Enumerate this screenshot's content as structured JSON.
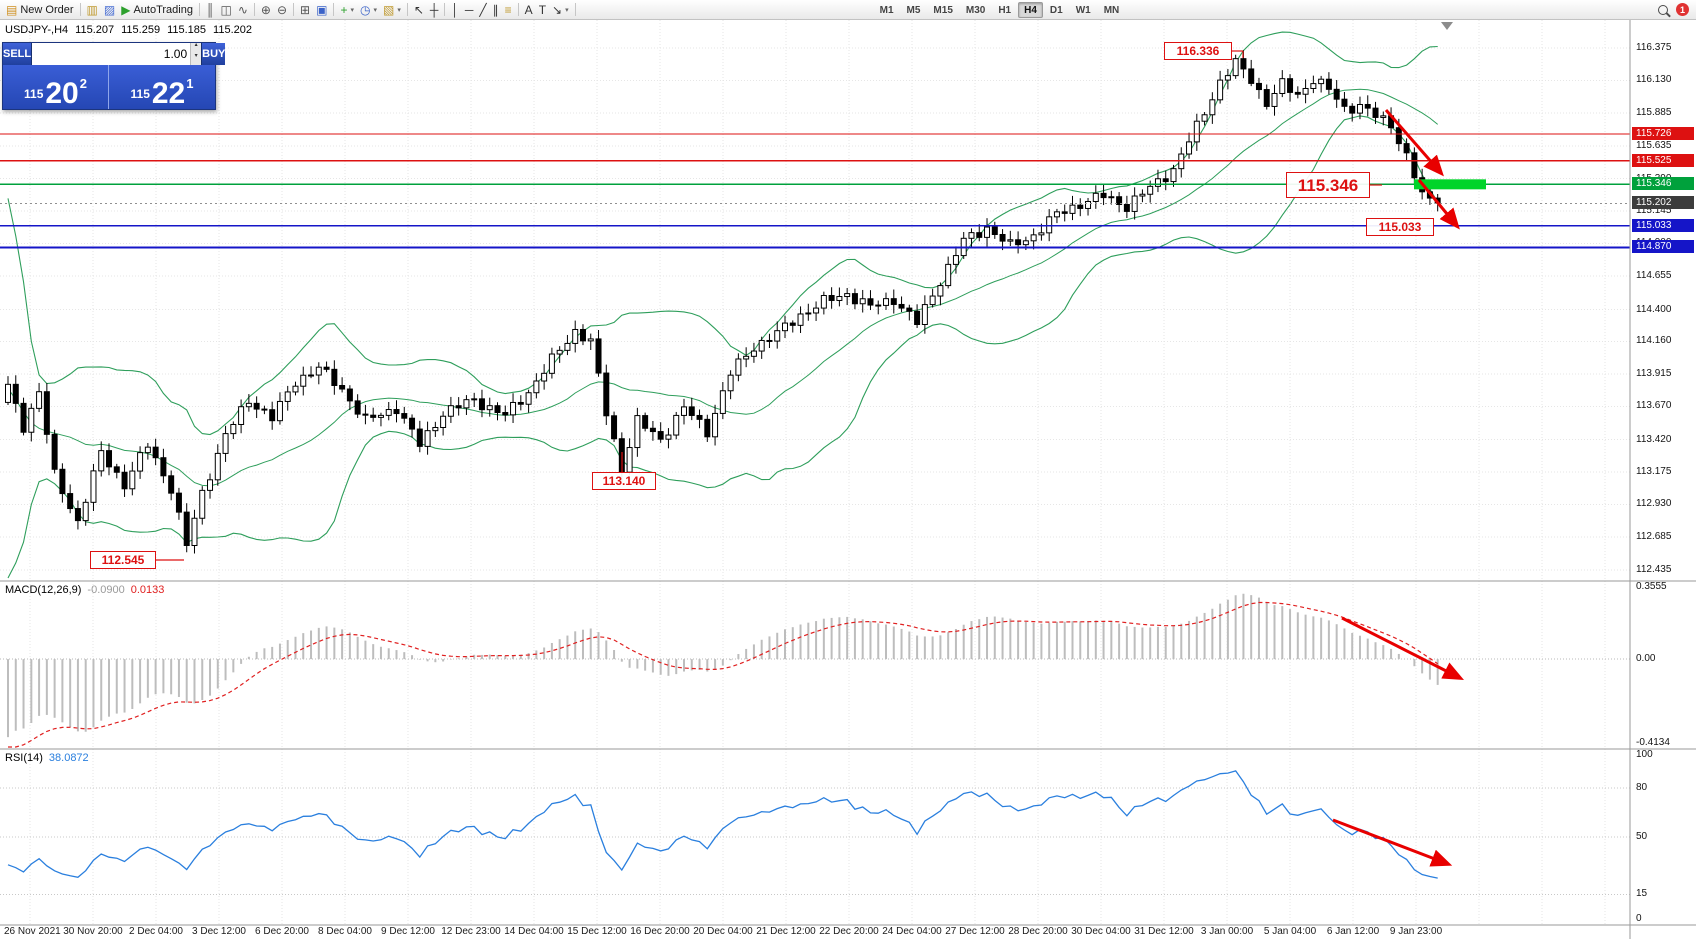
{
  "toolbar": {
    "icon_groups": [
      [
        {
          "name": "new-order-button",
          "glyph": "▤",
          "color": "#d09020",
          "label": "New Order"
        }
      ],
      [
        {
          "name": "charts-icon",
          "glyph": "▥",
          "color": "#c09a30"
        },
        {
          "name": "profiles-icon",
          "glyph": "▨",
          "color": "#4a6fd4"
        },
        {
          "name": "autotrading-button",
          "glyph": "▶",
          "color": "#2ca02c",
          "label": "AutoTrading"
        }
      ],
      [
        {
          "name": "bar-chart-icon",
          "glyph": "║",
          "color": "#555555"
        },
        {
          "name": "candlestick-chart-icon",
          "glyph": "◫",
          "color": "#555555"
        },
        {
          "name": "line-chart-icon",
          "glyph": "∿",
          "color": "#555555"
        }
      ],
      [
        {
          "name": "zoom-in-icon",
          "glyph": "⊕",
          "color": "#555555"
        },
        {
          "name": "zoom-out-icon",
          "glyph": "⊖",
          "color": "#555555"
        }
      ],
      [
        {
          "name": "tile-windows-icon",
          "glyph": "⊞",
          "color": "#555555"
        },
        {
          "name": "arrange-windows-icon",
          "glyph": "▣",
          "color": "#3a62c8"
        }
      ],
      [
        {
          "name": "add-indicator-icon",
          "glyph": "+",
          "color": "#2ca02c",
          "caret": true
        },
        {
          "name": "period-icon",
          "glyph": "◷",
          "color": "#3a62c8",
          "caret": true
        },
        {
          "name": "template-icon",
          "glyph": "▧",
          "color": "#c09a30",
          "caret": true
        }
      ],
      [
        {
          "name": "cursor-icon",
          "glyph": "↖",
          "color": "#333333"
        },
        {
          "name": "crosshair-icon",
          "glyph": "┼",
          "color": "#333333"
        }
      ],
      [
        {
          "name": "vertical-line-icon",
          "glyph": "│",
          "color": "#333333"
        },
        {
          "name": "horizontal-line-icon",
          "glyph": "─",
          "color": "#333333"
        },
        {
          "name": "trendline-icon",
          "glyph": "╱",
          "color": "#333333"
        },
        {
          "name": "channel-icon",
          "glyph": "∥",
          "color": "#333333"
        },
        {
          "name": "fibonacci-icon",
          "glyph": "≡",
          "color": "#c09a30"
        }
      ],
      [
        {
          "name": "text-icon",
          "glyph": "A",
          "color": "#333333"
        },
        {
          "name": "label-icon",
          "glyph": "T",
          "color": "#333333"
        },
        {
          "name": "shapes-icon",
          "glyph": "↘",
          "color": "#333333",
          "caret": true
        }
      ]
    ],
    "timeframes": [
      "M1",
      "M5",
      "M15",
      "M30",
      "H1",
      "H4",
      "D1",
      "W1",
      "MN"
    ],
    "active_timeframe": "H4",
    "notification_count": "1"
  },
  "symbol_header": {
    "symbol": "USDJPY-,H4",
    "open": "115.207",
    "high": "115.259",
    "low": "115.185",
    "close": "115.202"
  },
  "trade_panel": {
    "sell_label": "SELL",
    "buy_label": "BUY",
    "volume": "1.00",
    "volume_up_glyph": "▴",
    "volume_down_glyph": "▾",
    "sell_price_prefix": "115",
    "sell_price_big": "20",
    "sell_price_sup": "2",
    "buy_price_prefix": "115",
    "buy_price_big": "22",
    "buy_price_sup": "1"
  },
  "price_axis": {
    "labels": [
      "116.375",
      "116.130",
      "115.885",
      "115.635",
      "115.390",
      "115.145",
      "114.900",
      "114.655",
      "114.400",
      "114.160",
      "113.915",
      "113.670",
      "113.420",
      "113.175",
      "112.930",
      "112.685",
      "112.435"
    ],
    "badges": [
      {
        "value": "115.726",
        "price": 115.726,
        "color": "#dd1111"
      },
      {
        "value": "115.525",
        "price": 115.525,
        "color": "#dd1111"
      },
      {
        "value": "115.346",
        "price": 115.346,
        "color": "#00a13c"
      },
      {
        "value": "115.202",
        "price": 115.202,
        "color": "#3c3c3c"
      },
      {
        "value": "115.033",
        "price": 115.033,
        "color": "#1515c8"
      },
      {
        "value": "114.870",
        "price": 114.87,
        "color": "#1515c8"
      }
    ]
  },
  "hlines": [
    {
      "price": 115.726,
      "color": "#dd1111",
      "width": 1.3
    },
    {
      "price": 115.525,
      "color": "#dd1111",
      "width": 1.3
    },
    {
      "price": 115.346,
      "color": "#00a13c",
      "width": 1.3
    },
    {
      "price": 115.202,
      "color": "#909090",
      "width": 1,
      "dash": "2 3"
    },
    {
      "price": 115.033,
      "color": "#1515c8",
      "width": 1.4
    },
    {
      "price": 114.87,
      "color": "#1515c8",
      "width": 1.8
    }
  ],
  "green_zone": {
    "price": 115.346,
    "color": "#00d42a"
  },
  "annotations": [
    {
      "id": "high",
      "text": "116.336"
    },
    {
      "id": "level",
      "text": "115.346"
    },
    {
      "id": "target",
      "text": "115.033"
    },
    {
      "id": "swing_low",
      "text": "113.140"
    },
    {
      "id": "major_low",
      "text": "112.545"
    }
  ],
  "indicators": {
    "macd": {
      "label": "MACD(12,26,9)",
      "main_value": "-0.0900",
      "signal_value": "0.0133",
      "axis_labels": [
        "0.3555",
        "0.00",
        "-0.4134"
      ]
    },
    "rsi": {
      "label": "RSI(14)",
      "value": "38.0872",
      "axis_labels": [
        "100",
        "80",
        "50",
        "15",
        "0"
      ],
      "levels": [
        80,
        50,
        15
      ]
    }
  },
  "time_axis": {
    "labels": [
      "26 Nov 2021",
      "30 Nov 20:00",
      "2 Dec 04:00",
      "3 Dec 12:00",
      "6 Dec 20:00",
      "8 Dec 04:00",
      "9 Dec 12:00",
      "12 Dec 23:00",
      "14 Dec 04:00",
      "15 Dec 12:00",
      "16 Dec 20:00",
      "20 Dec 04:00",
      "21 Dec 12:00",
      "22 Dec 20:00",
      "24 Dec 04:00",
      "27 Dec 12:00",
      "28 Dec 20:00",
      "30 Dec 04:00",
      "31 Dec 12:00",
      "3 Jan 00:00",
      "5 Jan 04:00",
      "6 Jan 12:00",
      "9 Jan 23:00"
    ]
  },
  "chart_data": {
    "type": "candlestick",
    "symbol": "USDJPY-",
    "timeframe": "H4",
    "visible_bars": 185,
    "ylim": [
      112.435,
      116.375
    ],
    "ohlc_current": {
      "open": 115.207,
      "high": 115.259,
      "low": 115.185,
      "close": 115.202
    },
    "key_levels": {
      "resistance": [
        115.726,
        115.525
      ],
      "highlight": 115.346,
      "support": [
        115.033,
        114.87
      ],
      "swing_high": 116.336,
      "swing_lows": [
        113.14,
        112.545
      ]
    },
    "price_keypoints": [
      [
        0,
        113.82
      ],
      [
        2,
        113.52
      ],
      [
        4,
        113.78
      ],
      [
        6,
        113.15
      ],
      [
        9,
        112.8
      ],
      [
        12,
        113.32
      ],
      [
        15,
        113.08
      ],
      [
        18,
        113.38
      ],
      [
        21,
        113.05
      ],
      [
        23,
        112.62
      ],
      [
        25,
        113.02
      ],
      [
        28,
        113.45
      ],
      [
        31,
        113.72
      ],
      [
        34,
        113.58
      ],
      [
        37,
        113.86
      ],
      [
        40,
        113.96
      ],
      [
        43,
        113.8
      ],
      [
        46,
        113.56
      ],
      [
        50,
        113.66
      ],
      [
        53,
        113.38
      ],
      [
        56,
        113.62
      ],
      [
        60,
        113.72
      ],
      [
        64,
        113.6
      ],
      [
        67,
        113.78
      ],
      [
        70,
        114.02
      ],
      [
        73,
        114.24
      ],
      [
        75,
        114.16
      ],
      [
        77,
        113.62
      ],
      [
        79,
        113.2
      ],
      [
        81,
        113.56
      ],
      [
        84,
        113.42
      ],
      [
        87,
        113.66
      ],
      [
        90,
        113.48
      ],
      [
        93,
        113.92
      ],
      [
        96,
        114.12
      ],
      [
        99,
        114.22
      ],
      [
        102,
        114.36
      ],
      [
        105,
        114.46
      ],
      [
        108,
        114.52
      ],
      [
        111,
        114.42
      ],
      [
        114,
        114.48
      ],
      [
        117,
        114.3
      ],
      [
        120,
        114.62
      ],
      [
        123,
        114.92
      ],
      [
        126,
        115.02
      ],
      [
        129,
        114.88
      ],
      [
        132,
        114.96
      ],
      [
        135,
        115.12
      ],
      [
        138,
        115.2
      ],
      [
        141,
        115.26
      ],
      [
        144,
        115.18
      ],
      [
        147,
        115.32
      ],
      [
        150,
        115.46
      ],
      [
        153,
        115.78
      ],
      [
        156,
        116.12
      ],
      [
        158,
        116.26
      ],
      [
        160,
        116.14
      ],
      [
        162,
        115.96
      ],
      [
        164,
        116.1
      ],
      [
        166,
        116.02
      ],
      [
        168,
        116.14
      ],
      [
        170,
        116.06
      ],
      [
        172,
        115.92
      ],
      [
        174,
        115.94
      ],
      [
        176,
        115.86
      ],
      [
        178,
        115.8
      ],
      [
        180,
        115.56
      ],
      [
        182,
        115.26
      ],
      [
        184,
        115.2
      ]
    ],
    "warmup_closes": [
      115.45,
      115.4,
      115.35,
      115.3,
      114.6,
      113.9,
      113.5,
      113.3,
      113.2,
      113.35,
      113.5,
      113.3,
      113.2,
      113.4,
      113.55,
      113.4,
      113.3,
      113.45,
      113.6,
      113.7
    ],
    "indicator_params": {
      "bollinger": {
        "period": 20,
        "deviation": 2
      },
      "macd": {
        "fast": 12,
        "slow": 26,
        "signal": 9,
        "current_main": -0.09,
        "current_signal": 0.0133
      },
      "rsi": {
        "period": 14,
        "current": 38.0872
      }
    }
  },
  "colors": {
    "bull": "#ffffff",
    "bear": "#000000",
    "candle_outline": "#000000",
    "bollinger": "#2e9e5b",
    "grid": "#e6e6e6",
    "separator": "#9a9a9a",
    "macd_histogram": "#bdbdbd",
    "macd_signal": "#e02020",
    "rsi_line": "#2a7fde",
    "arrow": "#e80000",
    "annotation": "#dd1111"
  }
}
